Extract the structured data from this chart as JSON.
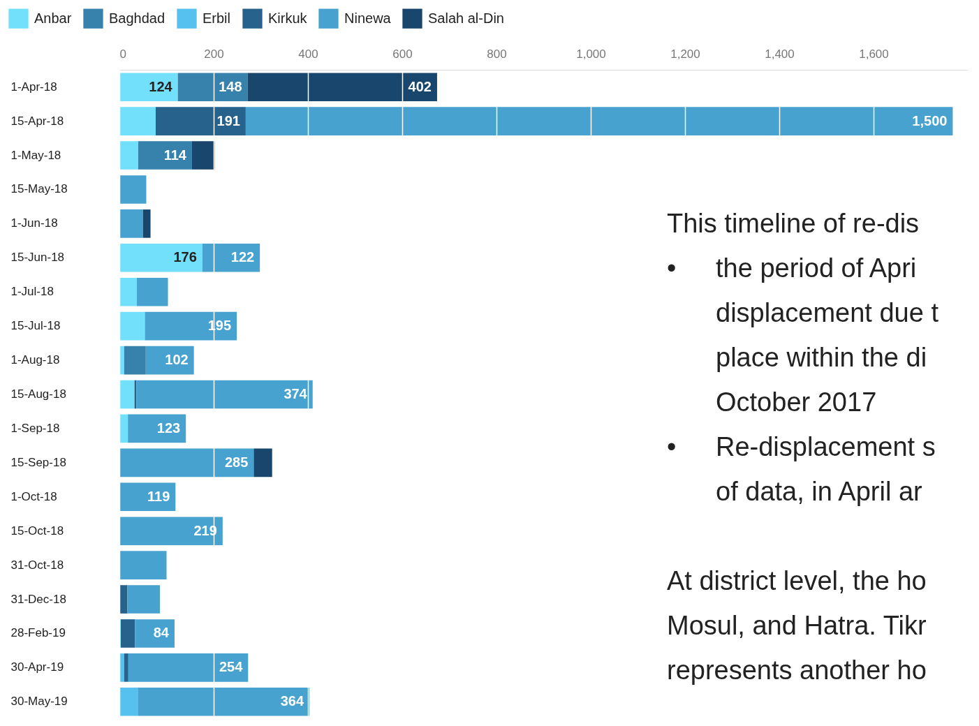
{
  "chart_data": {
    "type": "bar",
    "orientation": "horizontal",
    "stacked": true,
    "categories": [
      "1-Apr-18",
      "15-Apr-18",
      "1-May-18",
      "15-May-18",
      "1-Jun-18",
      "15-Jun-18",
      "1-Jul-18",
      "15-Jul-18",
      "1-Aug-18",
      "15-Aug-18",
      "1-Sep-18",
      "15-Sep-18",
      "1-Oct-18",
      "15-Oct-18",
      "31-Oct-18",
      "31-Dec-18",
      "28-Feb-19",
      "30-Apr-19",
      "30-May-19"
    ],
    "series": [
      {
        "name": "Anbar",
        "color": "#72e0fb",
        "values": [
          124,
          77,
          40,
          null,
          null,
          176,
          37,
          54,
          10,
          32,
          18,
          null,
          null,
          null,
          null,
          null,
          3,
          null,
          null
        ],
        "value_labels": [
          "124",
          null,
          null,
          null,
          null,
          "176",
          null,
          null,
          null,
          null,
          null,
          null,
          null,
          null,
          null,
          null,
          null,
          null,
          null
        ]
      },
      {
        "name": "Baghdad",
        "color": "#3682ad",
        "values": [
          148,
          null,
          114,
          null,
          null,
          null,
          null,
          null,
          46,
          null,
          null,
          null,
          null,
          null,
          null,
          null,
          null,
          null,
          null
        ],
        "value_labels": [
          "148",
          null,
          "114",
          null,
          null,
          null,
          null,
          null,
          null,
          null,
          null,
          null,
          null,
          null,
          null,
          null,
          null,
          null,
          null
        ]
      },
      {
        "name": "Erbil",
        "color": "#56c0ef",
        "values": [
          null,
          null,
          null,
          null,
          null,
          null,
          null,
          null,
          null,
          null,
          null,
          null,
          null,
          null,
          null,
          null,
          null,
          10,
          39
        ],
        "value_labels": [
          null,
          null,
          null,
          null,
          null,
          null,
          null,
          null,
          null,
          null,
          null,
          null,
          null,
          null,
          null,
          null,
          null,
          null,
          null
        ]
      },
      {
        "name": "Kirkuk",
        "color": "#26628c",
        "values": [
          null,
          191,
          null,
          null,
          null,
          null,
          null,
          null,
          null,
          4,
          null,
          null,
          null,
          null,
          null,
          17,
          30,
          9,
          null
        ],
        "value_labels": [
          null,
          "191",
          null,
          null,
          null,
          null,
          null,
          null,
          null,
          null,
          null,
          null,
          null,
          null,
          null,
          null,
          null,
          null,
          null
        ]
      },
      {
        "name": "Ninewa",
        "color": "#47a2cf",
        "values": [
          null,
          1500,
          null,
          57,
          50,
          122,
          66,
          195,
          102,
          374,
          123,
          285,
          119,
          219,
          100,
          69,
          84,
          254,
          364
        ],
        "value_labels": [
          null,
          "1,500",
          null,
          null,
          null,
          "122",
          null,
          "195",
          "102",
          "374",
          "123",
          "285",
          "119",
          "219",
          null,
          null,
          "84",
          "254",
          "364"
        ]
      },
      {
        "name": "Salah al-Din",
        "color": "#18466c",
        "values": [
          402,
          null,
          48,
          null,
          16,
          null,
          null,
          null,
          null,
          null,
          null,
          39,
          null,
          null,
          null,
          null,
          null,
          null,
          null
        ],
        "value_labels": [
          "402",
          null,
          null,
          null,
          null,
          null,
          null,
          null,
          null,
          null,
          null,
          null,
          null,
          null,
          null,
          null,
          null,
          null,
          null
        ]
      }
    ],
    "xlim": [
      0,
      1800
    ],
    "xticks": [
      0,
      200,
      400,
      600,
      800,
      {
        "value": 1000,
        "label": "1,000"
      },
      {
        "value": 1200,
        "label": "1,200"
      },
      {
        "value": 1400,
        "label": "1,400"
      },
      {
        "value": 1600,
        "label": "1,600"
      }
    ],
    "grid": "x",
    "legend": "top left",
    "annotations": [
      "This timeline of re-dis\n•\tthe period of Apri\n\tdisplacement due t\n\tplace within the di\n\tOctober 2017\n•\tRe-displacement s\n\tof data, in April ar",
      "At district level, the ho\nMosul, and Hatra. Tikr\nrepresents another ho"
    ]
  }
}
